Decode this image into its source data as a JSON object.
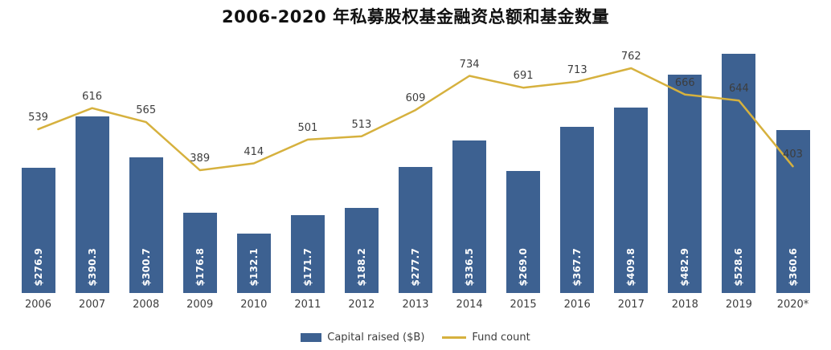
{
  "title": "2006-2020 年私募股权基金融资总额和基金数量",
  "legend": {
    "bar_label": "Capital raised ($B)",
    "line_label": "Fund count"
  },
  "colors": {
    "bar": "#3d6191",
    "line": "#d6b13e",
    "axis_text": "#3d3d3d",
    "bar_value_text": "#ffffff",
    "title_text": "#111111",
    "background": "#ffffff"
  },
  "chart_data": {
    "type": "bar+line",
    "title": "2006-2020 年私募股权基金融资总额和基金数量",
    "categories": [
      "2006",
      "2007",
      "2008",
      "2009",
      "2010",
      "2011",
      "2012",
      "2013",
      "2014",
      "2015",
      "2016",
      "2017",
      "2018",
      "2019",
      "2020*"
    ],
    "series": [
      {
        "name": "Capital raised ($B)",
        "type": "bar",
        "values": [
          276.9,
          390.3,
          300.7,
          176.8,
          132.1,
          171.7,
          188.2,
          277.7,
          336.5,
          269.0,
          367.7,
          409.8,
          482.9,
          528.6,
          360.6
        ],
        "labels": [
          "$276.9",
          "$390.3",
          "$300.7",
          "$176.8",
          "$132.1",
          "$171.7",
          "$188.2",
          "$277.7",
          "$336.5",
          "$269.0",
          "$367.7",
          "$409.8",
          "$482.9",
          "$528.6",
          "$360.6"
        ]
      },
      {
        "name": "Fund count",
        "type": "line",
        "values": [
          539,
          616,
          565,
          389,
          414,
          501,
          513,
          609,
          734,
          691,
          713,
          762,
          666,
          644,
          403
        ]
      }
    ],
    "xlabel": "",
    "ylabel": "",
    "ylim_bar": [
      0,
      560
    ],
    "ylim_line": [
      0,
      800
    ],
    "grid": false,
    "legend_position": "bottom",
    "data_labels": true
  }
}
